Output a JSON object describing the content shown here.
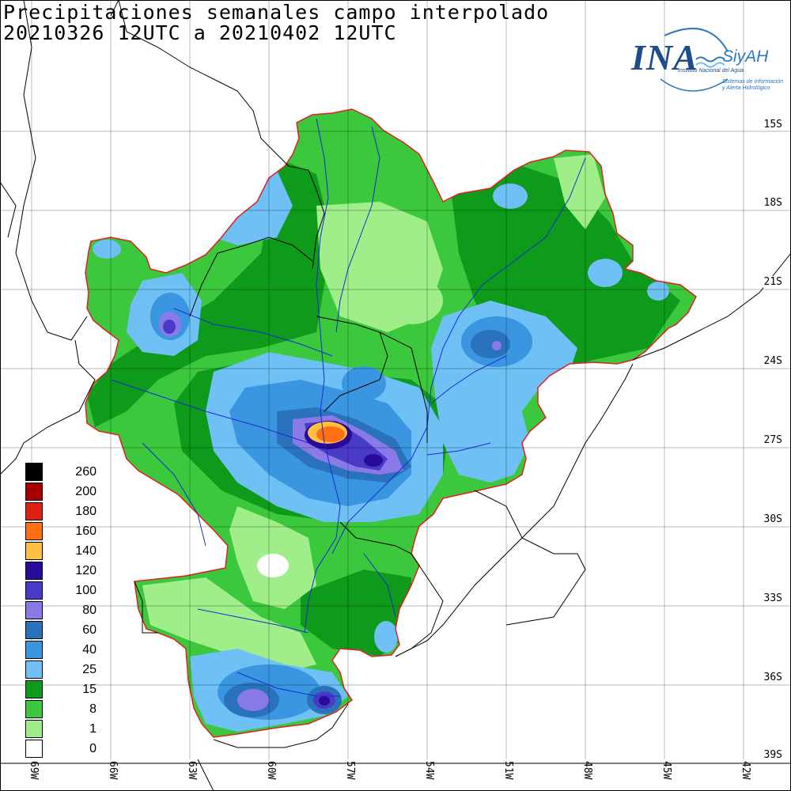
{
  "title": {
    "line1": "Precipitaciones semanales campo interpolado",
    "line2": "20210326 12UTC a 20210402 12UTC"
  },
  "logo": {
    "main": "INA",
    "product": "SiyAH",
    "institution": "Instituto Nacional del Agua",
    "system_line1": "Sistemas de Información",
    "system_line2": "y Alerta Hidrológico"
  },
  "lat_labels": [
    "15S",
    "18S",
    "21S",
    "24S",
    "27S",
    "30S",
    "33S",
    "36S",
    "39S"
  ],
  "lon_labels": [
    "69W",
    "66W",
    "63W",
    "60W",
    "57W",
    "54W",
    "51W",
    "48W",
    "45W",
    "42W"
  ],
  "legend": [
    {
      "label": "260",
      "color": "#000000"
    },
    {
      "label": "200",
      "color": "#a80000"
    },
    {
      "label": "180",
      "color": "#e02010"
    },
    {
      "label": "160",
      "color": "#ff7010"
    },
    {
      "label": "140",
      "color": "#ffbf40"
    },
    {
      "label": "120",
      "color": "#2a0a9a"
    },
    {
      "label": "100",
      "color": "#4a3ac8"
    },
    {
      "label": "80",
      "color": "#8a7ae8"
    },
    {
      "label": "60",
      "color": "#2a72bc"
    },
    {
      "label": "40",
      "color": "#3a96e0"
    },
    {
      "label": "25",
      "color": "#6ec0f5"
    },
    {
      "label": "15",
      "color": "#0e9a1a"
    },
    {
      "label": "8",
      "color": "#3cc83c"
    },
    {
      "label": "1",
      "color": "#a0ee8a"
    },
    {
      "label": "0",
      "color": "#ffffff"
    }
  ],
  "colors": {
    "basin_outline": "#e02020",
    "rivers": "#1a2ad8",
    "borders": "#000000"
  }
}
